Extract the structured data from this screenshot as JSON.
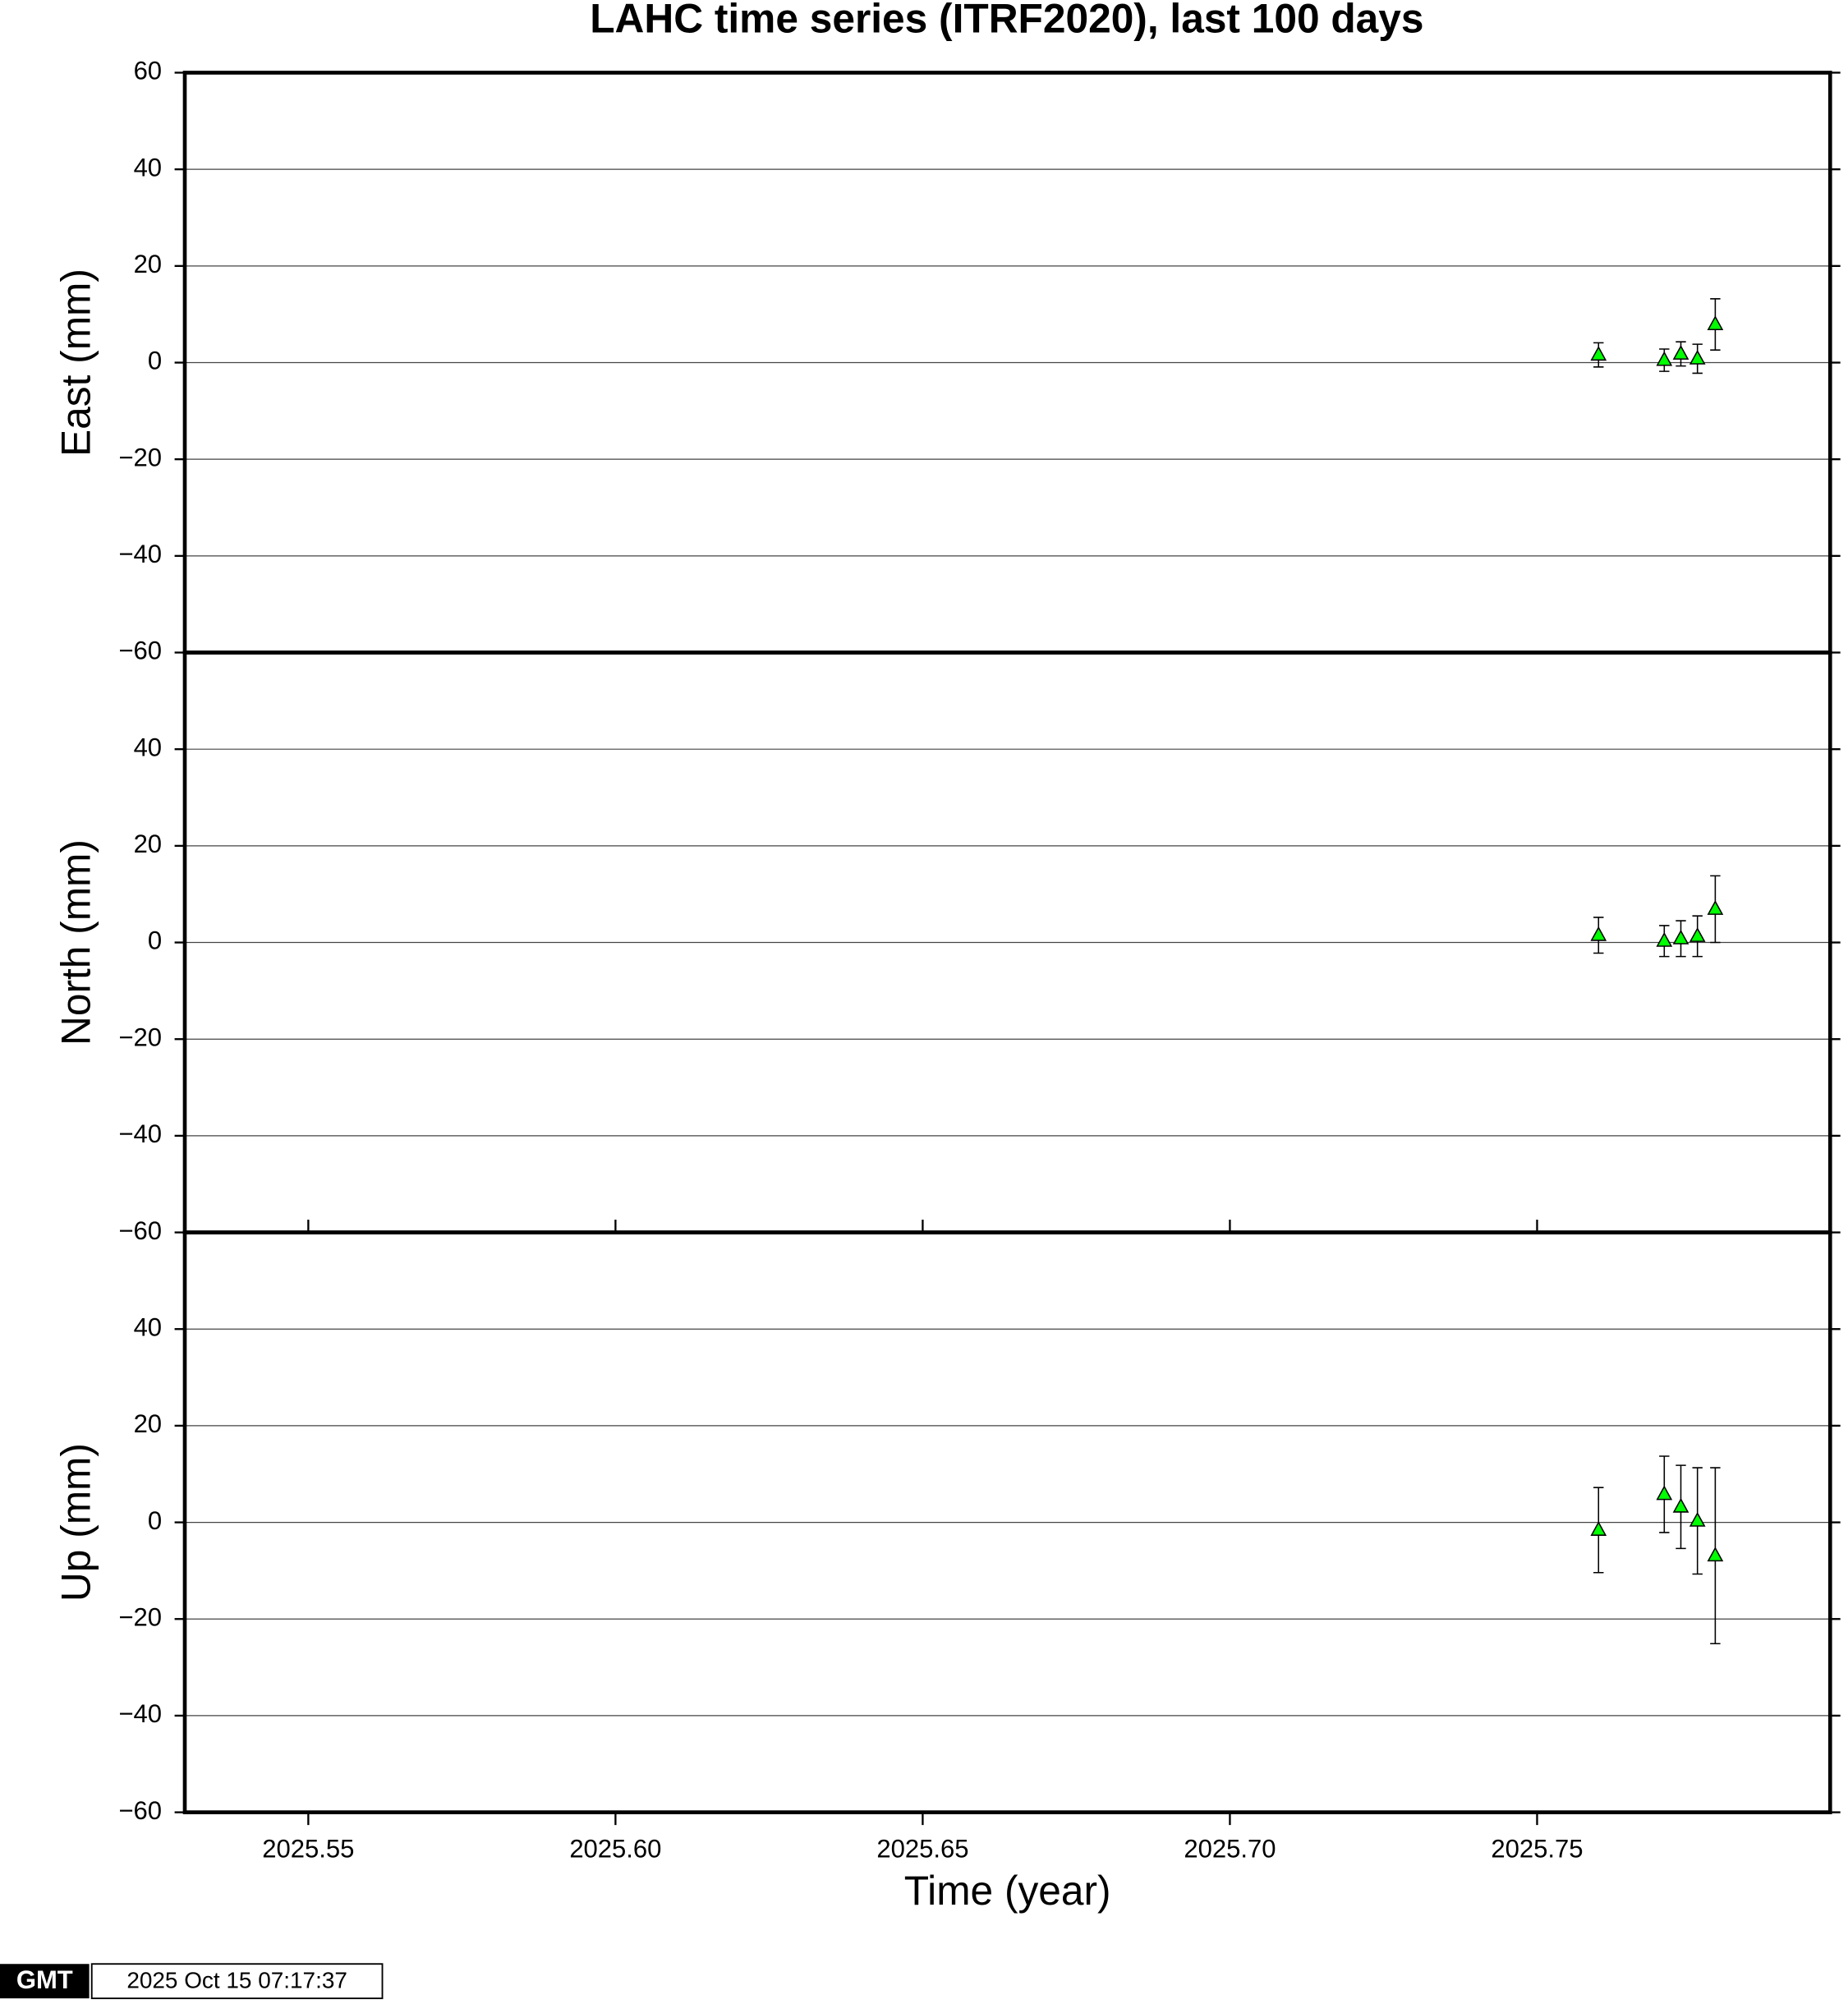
{
  "chart_data": [
    {
      "type": "scatter",
      "title": "LAHC time series (ITRF2020), last 100 days",
      "ylabel": "East (mm)",
      "x": [
        2025.76,
        2025.7707,
        2025.7734,
        2025.7761,
        2025.779
      ],
      "series": [
        {
          "color": "#00ff00",
          "values": [
            1.6,
            0.5,
            1.8,
            0.8,
            7.9
          ],
          "errors": [
            2.5,
            2.3,
            2.5,
            3.0,
            5.3
          ]
        }
      ],
      "xlim": [
        2025.5299,
        2025.7977
      ],
      "ylim": [
        -60,
        60
      ],
      "yticks": [
        {
          "value": -60,
          "label": "−60"
        },
        {
          "value": -40,
          "label": "−40"
        },
        {
          "value": -20,
          "label": "−20"
        },
        0,
        20,
        40,
        60
      ],
      "grid": true
    },
    {
      "type": "scatter",
      "ylabel": "North (mm)",
      "x": [
        2025.76,
        2025.7707,
        2025.7734,
        2025.7761,
        2025.779
      ],
      "series": [
        {
          "color": "#00ff00",
          "values": [
            1.5,
            0.3,
            0.8,
            1.3,
            6.9
          ],
          "errors": [
            3.7,
            3.2,
            3.7,
            4.2,
            6.9
          ]
        }
      ],
      "xlim": [
        2025.5299,
        2025.7977
      ],
      "ylim": [
        -60,
        60
      ],
      "yticks": [
        {
          "value": -60,
          "label": "−60"
        },
        {
          "value": -40,
          "label": "−40"
        },
        {
          "value": -20,
          "label": "−20"
        },
        0,
        20,
        40
      ],
      "grid": true
    },
    {
      "type": "scatter",
      "ylabel": "Up (mm)",
      "xlabel": "Time (year)",
      "x": [
        2025.76,
        2025.7707,
        2025.7734,
        2025.7761,
        2025.779
      ],
      "series": [
        {
          "color": "#00ff00",
          "values": [
            -1.6,
            5.8,
            3.2,
            0.3,
            -6.9
          ],
          "errors": [
            8.8,
            7.9,
            8.6,
            11.0,
            18.2
          ]
        }
      ],
      "xlim": [
        2025.5299,
        2025.7977
      ],
      "ylim": [
        -60,
        60
      ],
      "xticks": [
        {
          "value": 2025.55,
          "label": "2025.55"
        },
        {
          "value": 2025.6,
          "label": "2025.60"
        },
        {
          "value": 2025.65,
          "label": "2025.65"
        },
        {
          "value": 2025.7,
          "label": "2025.70"
        },
        {
          "value": 2025.75,
          "label": "2025.75"
        }
      ],
      "yticks": [
        {
          "value": -60,
          "label": "−60"
        },
        {
          "value": -40,
          "label": "−40"
        },
        {
          "value": -20,
          "label": "−20"
        },
        0,
        20,
        40
      ],
      "grid": true
    }
  ],
  "footer": {
    "logo": "GMT",
    "timestamp": "2025 Oct 15 07:17:37"
  }
}
